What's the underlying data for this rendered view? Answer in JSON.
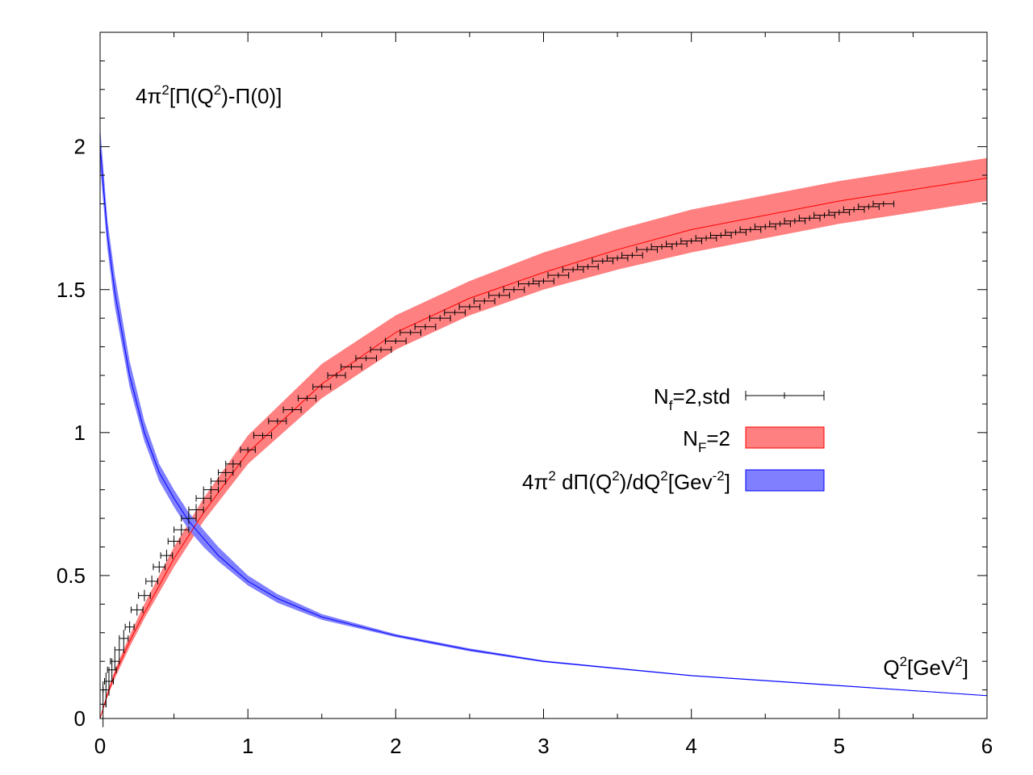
{
  "chart_data": {
    "type": "line",
    "xlim": [
      0,
      6
    ],
    "ylim": [
      0,
      2.4
    ],
    "x_ticks": [
      "0",
      "1",
      "2",
      "3",
      "4",
      "5",
      "6"
    ],
    "y_ticks": [
      "0",
      "0.5",
      "1",
      "1.5",
      "2"
    ],
    "grid": false,
    "legend_position": "center-right",
    "ylabel": {
      "lead": "4π",
      "sup1": "2",
      "mid1": "[Π(Q",
      "sup2": "2",
      "tail": ")-Π(0)]"
    },
    "xlabel": {
      "lead": "Q",
      "sup1": "2",
      "mid1": "[GeV",
      "sup2": "2",
      "tail": "]"
    },
    "legend": [
      {
        "name_main": "N",
        "name_sub": "f",
        "name_rest": "=2,std",
        "style": "errorbars",
        "color": "#000000"
      },
      {
        "name_main": "N",
        "name_sub": "F",
        "name_rest": "=2",
        "style": "band",
        "color": "#ff8080",
        "line_color": "#ff0000"
      },
      {
        "name_main": "4π",
        "name_sup1": "2",
        "name_mid": " dΠ(Q",
        "name_sup2": "2",
        "name_mid2": ")/dQ",
        "name_sup3": "2",
        "name_mid3": "[Gev",
        "name_sup4": "-2",
        "name_end": "]",
        "style": "band",
        "color": "#8080ff",
        "line_color": "#0000ff"
      }
    ],
    "series": [
      {
        "name": "N_F=2",
        "kind": "band",
        "x": [
          0,
          0.05,
          0.1,
          0.2,
          0.3,
          0.5,
          0.7,
          1.0,
          1.5,
          2.0,
          2.5,
          3.0,
          3.5,
          4.0,
          5.0,
          6.0
        ],
        "y": [
          0,
          0.085,
          0.155,
          0.27,
          0.37,
          0.56,
          0.72,
          0.93,
          1.17,
          1.35,
          1.47,
          1.56,
          1.64,
          1.71,
          1.81,
          1.89
        ],
        "y_lo": [
          0,
          0.075,
          0.14,
          0.25,
          0.35,
          0.53,
          0.69,
          0.89,
          1.12,
          1.29,
          1.41,
          1.5,
          1.57,
          1.63,
          1.73,
          1.81
        ],
        "y_hi": [
          0,
          0.095,
          0.17,
          0.29,
          0.4,
          0.6,
          0.77,
          0.99,
          1.24,
          1.41,
          1.53,
          1.63,
          1.71,
          1.78,
          1.88,
          1.96
        ]
      },
      {
        "name": "4π² dΠ(Q²)/dQ²",
        "kind": "band",
        "x": [
          0,
          0.05,
          0.1,
          0.2,
          0.3,
          0.4,
          0.5,
          0.6,
          0.7,
          0.8,
          1.0,
          1.2,
          1.5,
          2.0,
          2.5,
          3.0,
          4.0,
          5.0,
          6.0
        ],
        "y": [
          2.0,
          1.69,
          1.49,
          1.2,
          1.0,
          0.86,
          0.77,
          0.69,
          0.63,
          0.57,
          0.48,
          0.42,
          0.355,
          0.29,
          0.24,
          0.2,
          0.15,
          0.115,
          0.08
        ],
        "y_lo": [
          1.93,
          1.64,
          1.44,
          1.16,
          0.97,
          0.83,
          0.74,
          0.66,
          0.6,
          0.55,
          0.465,
          0.405,
          0.345,
          0.285,
          0.235,
          0.197,
          0.148,
          0.113,
          0.079
        ],
        "y_hi": [
          2.07,
          1.74,
          1.55,
          1.25,
          1.04,
          0.89,
          0.8,
          0.72,
          0.66,
          0.6,
          0.5,
          0.435,
          0.365,
          0.295,
          0.245,
          0.203,
          0.152,
          0.117,
          0.081
        ]
      },
      {
        "name": "N_f=2,std",
        "kind": "points",
        "color": "#000000",
        "x": [
          0.02,
          0.04,
          0.06,
          0.08,
          0.1,
          0.13,
          0.16,
          0.2,
          0.25,
          0.3,
          0.35,
          0.4,
          0.45,
          0.5,
          0.55,
          0.6,
          0.65,
          0.7,
          0.75,
          0.8,
          0.85,
          0.9,
          1.0,
          1.1,
          1.2,
          1.3,
          1.4,
          1.5,
          1.6,
          1.7,
          1.8,
          1.9,
          2.0,
          2.1,
          2.2,
          2.3,
          2.4,
          2.5,
          2.6,
          2.7,
          2.8,
          2.9,
          3.0,
          3.1,
          3.2,
          3.3,
          3.4,
          3.5,
          3.6,
          3.7,
          3.8,
          3.9,
          4.0,
          4.1,
          4.2,
          4.3,
          4.4,
          4.5,
          4.6,
          4.7,
          4.8,
          4.9,
          5.0,
          5.1,
          5.2,
          5.3
        ],
        "y": [
          0.05,
          0.1,
          0.13,
          0.17,
          0.2,
          0.24,
          0.28,
          0.32,
          0.38,
          0.43,
          0.48,
          0.53,
          0.57,
          0.62,
          0.66,
          0.7,
          0.73,
          0.77,
          0.8,
          0.83,
          0.86,
          0.89,
          0.94,
          0.99,
          1.04,
          1.08,
          1.12,
          1.16,
          1.2,
          1.23,
          1.26,
          1.29,
          1.32,
          1.35,
          1.37,
          1.4,
          1.42,
          1.44,
          1.46,
          1.48,
          1.5,
          1.52,
          1.53,
          1.55,
          1.57,
          1.58,
          1.6,
          1.61,
          1.62,
          1.64,
          1.65,
          1.66,
          1.67,
          1.68,
          1.69,
          1.7,
          1.71,
          1.72,
          1.73,
          1.74,
          1.75,
          1.76,
          1.77,
          1.78,
          1.79,
          1.8
        ],
        "xerr": [
          0.02,
          0.02,
          0.03,
          0.03,
          0.03,
          0.03,
          0.03,
          0.03,
          0.04,
          0.04,
          0.04,
          0.04,
          0.04,
          0.04,
          0.05,
          0.05,
          0.05,
          0.05,
          0.05,
          0.05,
          0.05,
          0.05,
          0.05,
          0.06,
          0.06,
          0.06,
          0.06,
          0.06,
          0.06,
          0.07,
          0.07,
          0.07,
          0.07,
          0.07,
          0.07,
          0.07,
          0.07,
          0.07,
          0.07,
          0.07,
          0.07,
          0.07,
          0.07,
          0.07,
          0.07,
          0.07,
          0.07,
          0.07,
          0.07,
          0.07,
          0.07,
          0.07,
          0.07,
          0.07,
          0.07,
          0.07,
          0.07,
          0.07,
          0.07,
          0.07,
          0.07,
          0.07,
          0.07,
          0.07,
          0.07,
          0.07
        ],
        "yerr": [
          0.08,
          0.06,
          0.05,
          0.04,
          0.03,
          0.03,
          0.03,
          0.02,
          0.02,
          0.02,
          0.02,
          0.02,
          0.02,
          0.02,
          0.02,
          0.02,
          0.02,
          0.02,
          0.015,
          0.015,
          0.015,
          0.015,
          0.01,
          0.01,
          0.01,
          0.01,
          0.01,
          0.01,
          0.01,
          0.01,
          0.01,
          0.01,
          0.01,
          0.01,
          0.01,
          0.01,
          0.01,
          0.01,
          0.01,
          0.01,
          0.01,
          0.01,
          0.01,
          0.01,
          0.01,
          0.01,
          0.01,
          0.01,
          0.01,
          0.01,
          0.01,
          0.01,
          0.01,
          0.01,
          0.01,
          0.01,
          0.01,
          0.01,
          0.01,
          0.01,
          0.01,
          0.01,
          0.01,
          0.01,
          0.01,
          0.01
        ]
      }
    ]
  }
}
